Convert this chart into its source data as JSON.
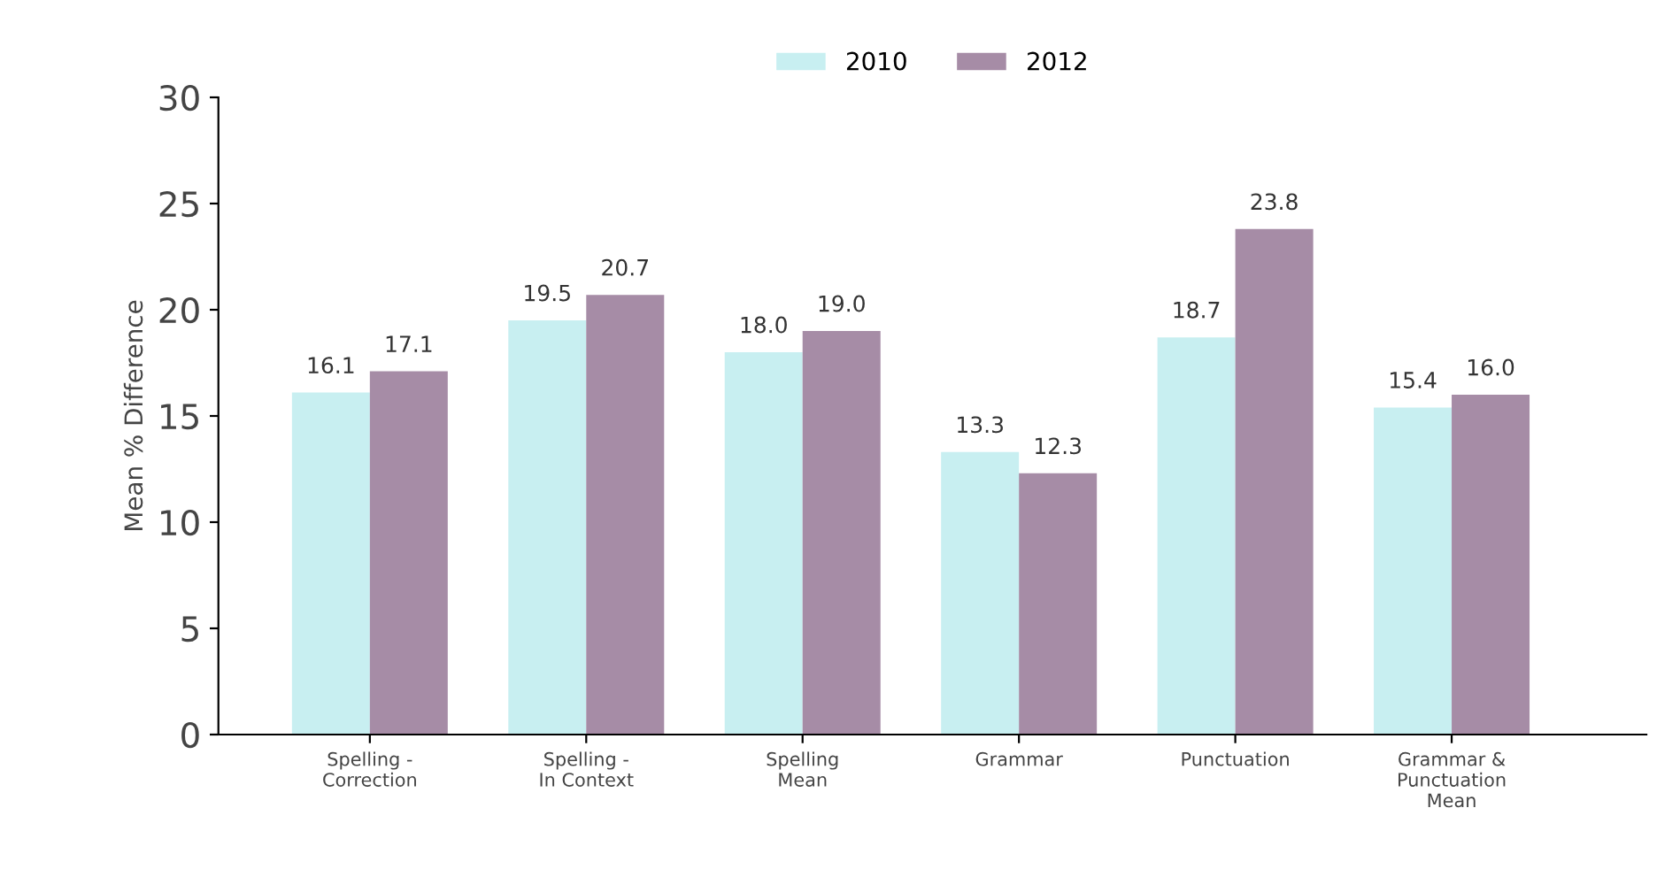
{
  "chart_data": {
    "type": "bar",
    "ylabel": "Mean % Difference",
    "categories": [
      "Spelling -\nCorrection",
      "Spelling -\nIn Context",
      "Spelling\nMean",
      "Grammar",
      "Punctuation",
      "Grammar &\nPunctuation\nMean"
    ],
    "series": [
      {
        "name": "2010",
        "color": "#c8eff1",
        "values": [
          16.1,
          19.5,
          18.0,
          13.3,
          18.7,
          15.4
        ],
        "value_labels": [
          "16.1",
          "19.5",
          "18.0",
          "13.3",
          "18.7",
          "15.4"
        ]
      },
      {
        "name": "2012",
        "color": "#a68ca6",
        "values": [
          17.1,
          20.7,
          19.0,
          12.3,
          23.8,
          16.0
        ],
        "value_labels": [
          "17.1",
          "20.7",
          "19.0",
          "12.3",
          "23.8",
          "16.0"
        ]
      }
    ],
    "ylim": [
      0,
      30
    ],
    "yticks": [
      0,
      5,
      10,
      15,
      20,
      25,
      30
    ],
    "grid": false,
    "legend": "top"
  }
}
